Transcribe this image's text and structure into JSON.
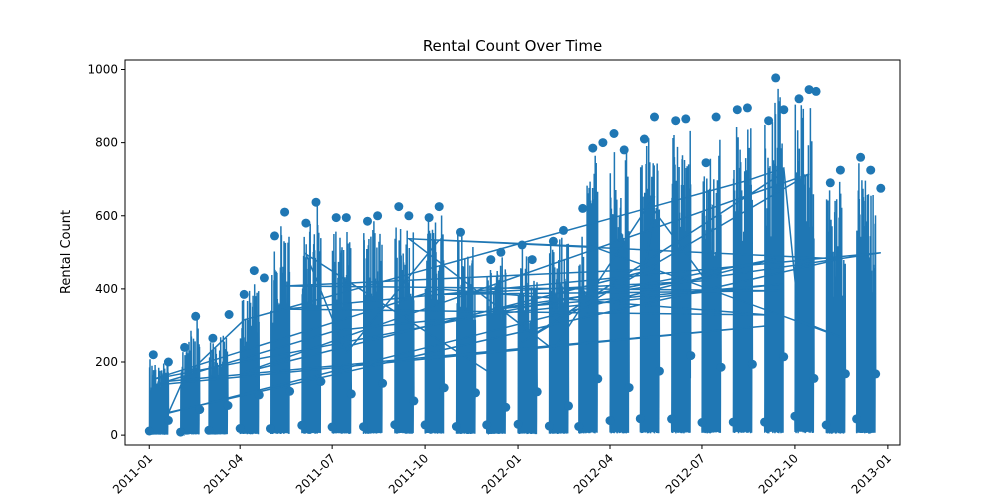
{
  "chart_data": {
    "type": "line",
    "title": "Rental Count Over Time",
    "xlabel": "",
    "ylabel": "Rental Count",
    "xlim": [
      "2010-12-08",
      "2013-01-13"
    ],
    "ylim": [
      -27,
      1026
    ],
    "grid": false,
    "markers": true,
    "color": "#1f77b4",
    "x_ticks": [
      "2011-01",
      "2011-04",
      "2011-07",
      "2011-10",
      "2012-01",
      "2012-04",
      "2012-07",
      "2012-10",
      "2013-01"
    ],
    "x_tick_dates": [
      "2011-01-01",
      "2011-04-01",
      "2011-07-01",
      "2011-10-01",
      "2012-01-01",
      "2012-04-01",
      "2012-07-01",
      "2012-10-01",
      "2013-01-01"
    ],
    "y_ticks": [
      0,
      200,
      400,
      600,
      800,
      1000
    ],
    "series": [
      {
        "peaks": [
          {
            "x": "2011-01-05",
            "y": 220
          },
          {
            "x": "2011-01-20",
            "y": 200
          },
          {
            "x": "2011-02-05",
            "y": 240
          },
          {
            "x": "2011-02-16",
            "y": 325
          },
          {
            "x": "2011-03-05",
            "y": 265
          },
          {
            "x": "2011-03-21",
            "y": 330
          },
          {
            "x": "2011-04-05",
            "y": 385
          },
          {
            "x": "2011-04-15",
            "y": 450
          },
          {
            "x": "2011-04-25",
            "y": 430
          },
          {
            "x": "2011-05-05",
            "y": 545
          },
          {
            "x": "2011-05-15",
            "y": 610
          },
          {
            "x": "2011-06-05",
            "y": 580
          },
          {
            "x": "2011-06-15",
            "y": 637
          },
          {
            "x": "2011-07-05",
            "y": 595
          },
          {
            "x": "2011-07-15",
            "y": 595
          },
          {
            "x": "2011-08-05",
            "y": 585
          },
          {
            "x": "2011-08-15",
            "y": 600
          },
          {
            "x": "2011-09-05",
            "y": 625
          },
          {
            "x": "2011-09-15",
            "y": 600
          },
          {
            "x": "2011-10-05",
            "y": 595
          },
          {
            "x": "2011-10-15",
            "y": 625
          },
          {
            "x": "2011-11-05",
            "y": 555
          },
          {
            "x": "2011-12-05",
            "y": 480
          },
          {
            "x": "2011-12-15",
            "y": 500
          },
          {
            "x": "2012-01-05",
            "y": 520
          },
          {
            "x": "2012-01-15",
            "y": 480
          },
          {
            "x": "2012-02-05",
            "y": 530
          },
          {
            "x": "2012-02-15",
            "y": 560
          },
          {
            "x": "2012-03-05",
            "y": 620
          },
          {
            "x": "2012-03-15",
            "y": 785
          },
          {
            "x": "2012-03-25",
            "y": 800
          },
          {
            "x": "2012-04-05",
            "y": 825
          },
          {
            "x": "2012-04-15",
            "y": 780
          },
          {
            "x": "2012-05-05",
            "y": 810
          },
          {
            "x": "2012-05-15",
            "y": 870
          },
          {
            "x": "2012-06-05",
            "y": 860
          },
          {
            "x": "2012-06-15",
            "y": 865
          },
          {
            "x": "2012-07-05",
            "y": 745
          },
          {
            "x": "2012-07-15",
            "y": 870
          },
          {
            "x": "2012-08-05",
            "y": 890
          },
          {
            "x": "2012-08-15",
            "y": 895
          },
          {
            "x": "2012-09-05",
            "y": 860
          },
          {
            "x": "2012-09-12",
            "y": 977
          },
          {
            "x": "2012-09-20",
            "y": 890
          },
          {
            "x": "2012-10-05",
            "y": 920
          },
          {
            "x": "2012-10-15",
            "y": 945
          },
          {
            "x": "2012-10-22",
            "y": 940
          },
          {
            "x": "2012-11-05",
            "y": 690
          },
          {
            "x": "2012-11-15",
            "y": 725
          },
          {
            "x": "2012-12-05",
            "y": 760
          },
          {
            "x": "2012-12-15",
            "y": 725
          },
          {
            "x": "2012-12-25",
            "y": 675
          }
        ]
      }
    ]
  }
}
